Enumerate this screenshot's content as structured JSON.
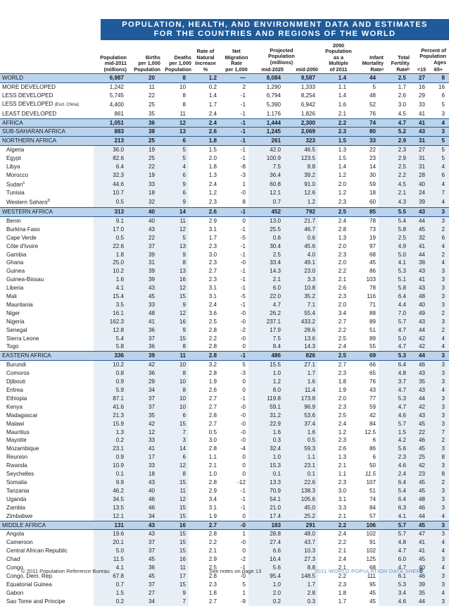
{
  "header": {
    "title_line1": "POPULATION, HEALTH, AND ENVIRONMENT DATA AND ESTIMATES",
    "title_line2": "FOR THE COUNTRIES AND REGIONS OF THE WORLD"
  },
  "columns": {
    "population": "Population\nmid-2011\n(millions)",
    "births": "Births\nper 1,000\nPopulation",
    "deaths": "Deaths\nper 1,000\nPopulation",
    "natural_increase": "Rate of\nNatural\nIncrease\n%",
    "migration": "Net\nMigration\nRate\nper 1,000",
    "projected": "Projected\nPopulation\n(millions)",
    "mid2025": "mid-2025",
    "mid2050": "mid-2050",
    "multiple": "2050\nPopulation\nas a\nMultiple\nof 2011",
    "infant_mortality": "Infant\nMortality\nRateᵃ",
    "fertility": "Total\nFertility\nRateᵇ",
    "ages": "Percent of\nPopulation\nAges",
    "under15": "<15",
    "over65": "65+"
  },
  "rows": [
    {
      "type": "world",
      "name": "WORLD",
      "c": [
        "6,987",
        "20",
        "8",
        "1.2",
        "—",
        "8,084",
        "9,587",
        "1.4",
        "44",
        "2.5",
        "27",
        "8"
      ]
    },
    {
      "type": "sub",
      "name": "MORE DEVELOPED",
      "c": [
        "1,242",
        "11",
        "10",
        "0.2",
        "2",
        "1,290",
        "1,333",
        "1.1",
        "5",
        "1.7",
        "16",
        "16"
      ]
    },
    {
      "type": "sub",
      "name": "LESS DEVELOPED",
      "c": [
        "5,745",
        "22",
        "8",
        "1.4",
        "-1",
        "6,794",
        "8,254",
        "1.4",
        "48",
        "2.6",
        "29",
        "6"
      ]
    },
    {
      "type": "sub",
      "name": "LESS DEVELOPED",
      "note": "(Excl. China)",
      "c": [
        "4,400",
        "25",
        "8",
        "1.7",
        "-1",
        "5,390",
        "6,942",
        "1.6",
        "52",
        "3.0",
        "33",
        "5"
      ]
    },
    {
      "type": "sub",
      "name": "LEAST DEVELOPED",
      "c": [
        "861",
        "35",
        "11",
        "2.4",
        "-1",
        "1,176",
        "1,826",
        "2.1",
        "76",
        "4.5",
        "41",
        "3"
      ]
    },
    {
      "type": "reg",
      "name": "AFRICA",
      "c": [
        "1,051",
        "36",
        "12",
        "2.4",
        "-1",
        "1,444",
        "2,300",
        "2.2",
        "74",
        "4.7",
        "41",
        "4"
      ]
    },
    {
      "type": "reg",
      "name": "SUB-SAHARAN AFRICA",
      "c": [
        "883",
        "38",
        "13",
        "2.6",
        "-1",
        "1,245",
        "2,069",
        "2.3",
        "80",
        "5.2",
        "43",
        "3"
      ]
    },
    {
      "type": "reg",
      "name": "NORTHERN AFRICA",
      "c": [
        "213",
        "25",
        "6",
        "1.8",
        "-1",
        "261",
        "323",
        "1.5",
        "33",
        "2.9",
        "31",
        "5"
      ]
    },
    {
      "type": "cty",
      "name": "Algeria",
      "c": [
        "36.0",
        "19",
        "5",
        "1.5",
        "-1",
        "42.0",
        "46.5",
        "1.3",
        "22",
        "2.3",
        "27",
        "5"
      ]
    },
    {
      "type": "cty",
      "name": "Egypt",
      "c": [
        "82.6",
        "25",
        "5",
        "2.0",
        "-1",
        "100.9",
        "123.5",
        "1.5",
        "23",
        "2.9",
        "31",
        "5"
      ]
    },
    {
      "type": "cty",
      "name": "Libya",
      "c": [
        "6.4",
        "22",
        "4",
        "1.8",
        "-8",
        "7.5",
        "8.8",
        "1.4",
        "14",
        "2.5",
        "31",
        "4"
      ]
    },
    {
      "type": "cty",
      "name": "Morocco",
      "c": [
        "32.3",
        "19",
        "6",
        "1.3",
        "-3",
        "36.4",
        "39.2",
        "1.2",
        "30",
        "2.2",
        "28",
        "6"
      ]
    },
    {
      "type": "cty",
      "name": "Sudan",
      "sup": "c",
      "c": [
        "44.6",
        "33",
        "9",
        "2.4",
        "1",
        "60.8",
        "91.0",
        "2.0",
        "59",
        "4.5",
        "40",
        "4"
      ]
    },
    {
      "type": "cty",
      "name": "Tunisia",
      "c": [
        "10.7",
        "18",
        "6",
        "1.2",
        "-0",
        "12.1",
        "12.6",
        "1.2",
        "18",
        "2.1",
        "24",
        "7"
      ]
    },
    {
      "type": "cty",
      "name": "Western Sahara",
      "sup": "d",
      "c": [
        "0.5",
        "32",
        "9",
        "2.3",
        "8",
        "0.7",
        "1.2",
        "2.3",
        "60",
        "4.3",
        "39",
        "4"
      ]
    },
    {
      "type": "reg",
      "name": "WESTERN AFRICA",
      "c": [
        "313",
        "40",
        "14",
        "2.6",
        "-1",
        "452",
        "792",
        "2.5",
        "85",
        "5.5",
        "43",
        "3"
      ]
    },
    {
      "type": "cty",
      "name": "Benin",
      "c": [
        "9.1",
        "40",
        "11",
        "2.9",
        "0",
        "13.0",
        "21.7",
        "2.4",
        "78",
        "5.4",
        "44",
        "3"
      ]
    },
    {
      "type": "cty",
      "name": "Burkina Faso",
      "c": [
        "17.0",
        "43",
        "12",
        "3.1",
        "-1",
        "25.5",
        "46.7",
        "2.8",
        "73",
        "5.8",
        "45",
        "2"
      ]
    },
    {
      "type": "cty",
      "name": "Cape Verde",
      "c": [
        "0.5",
        "22",
        "5",
        "1.7",
        "-5",
        "0.6",
        "0.6",
        "1.3",
        "19",
        "2.5",
        "32",
        "6"
      ]
    },
    {
      "type": "cty",
      "name": "Côte d'Ivoire",
      "c": [
        "22.6",
        "37",
        "13",
        "2.3",
        "-1",
        "30.4",
        "45.6",
        "2.0",
        "97",
        "4.9",
        "41",
        "4"
      ]
    },
    {
      "type": "cty",
      "name": "Gambia",
      "c": [
        "1.8",
        "39",
        "9",
        "3.0",
        "-1",
        "2.5",
        "4.0",
        "2.3",
        "68",
        "5.0",
        "44",
        "2"
      ]
    },
    {
      "type": "cty",
      "name": "Ghana",
      "c": [
        "25.0",
        "31",
        "8",
        "2.3",
        "-0",
        "33.4",
        "49.1",
        "2.0",
        "45",
        "4.1",
        "38",
        "4"
      ]
    },
    {
      "type": "cty",
      "name": "Guinea",
      "c": [
        "10.2",
        "39",
        "13",
        "2.7",
        "-1",
        "14.3",
        "23.0",
        "2.2",
        "86",
        "5.3",
        "43",
        "3"
      ]
    },
    {
      "type": "cty",
      "name": "Guinea-Bissau",
      "c": [
        "1.6",
        "39",
        "16",
        "2.3",
        "-1",
        "2.1",
        "3.3",
        "2.1",
        "103",
        "5.1",
        "41",
        "3"
      ]
    },
    {
      "type": "cty",
      "name": "Liberia",
      "c": [
        "4.1",
        "43",
        "12",
        "3.1",
        "-1",
        "6.0",
        "10.8",
        "2.6",
        "78",
        "5.8",
        "43",
        "3"
      ]
    },
    {
      "type": "cty",
      "name": "Mali",
      "c": [
        "15.4",
        "45",
        "15",
        "3.1",
        "-5",
        "22.0",
        "35.2",
        "2.3",
        "116",
        "6.4",
        "48",
        "3"
      ]
    },
    {
      "type": "cty",
      "name": "Mauritania",
      "c": [
        "3.5",
        "33",
        "9",
        "2.4",
        "-1",
        "4.7",
        "7.1",
        "2.0",
        "71",
        "4.4",
        "40",
        "3"
      ]
    },
    {
      "type": "cty",
      "name": "Niger",
      "c": [
        "16.1",
        "48",
        "12",
        "3.6",
        "-0",
        "26.2",
        "55.4",
        "3.4",
        "88",
        "7.0",
        "49",
        "2"
      ]
    },
    {
      "type": "cty",
      "name": "Nigeria",
      "c": [
        "162.3",
        "41",
        "16",
        "2.5",
        "-0",
        "237.1",
        "433.2",
        "2.7",
        "89",
        "5.7",
        "43",
        "3"
      ]
    },
    {
      "type": "cty",
      "name": "Senegal",
      "c": [
        "12.8",
        "36",
        "9",
        "2.8",
        "-2",
        "17.9",
        "28.6",
        "2.2",
        "51",
        "4.7",
        "44",
        "2"
      ]
    },
    {
      "type": "cty",
      "name": "Sierra Leone",
      "c": [
        "5.4",
        "37",
        "15",
        "2.2",
        "-0",
        "7.5",
        "13.6",
        "2.5",
        "89",
        "5.0",
        "42",
        "4"
      ]
    },
    {
      "type": "cty",
      "name": "Togo",
      "c": [
        "5.8",
        "36",
        "8",
        "2.8",
        "0",
        "8.4",
        "14.3",
        "2.4",
        "55",
        "4.7",
        "42",
        "4"
      ]
    },
    {
      "type": "reg",
      "name": "EASTERN AFRICA",
      "c": [
        "336",
        "39",
        "11",
        "2.8",
        "-1",
        "486",
        "826",
        "2.5",
        "69",
        "5.3",
        "44",
        "3"
      ]
    },
    {
      "type": "cty",
      "name": "Burundi",
      "c": [
        "10.2",
        "42",
        "10",
        "3.2",
        "5",
        "15.5",
        "27.1",
        "2.7",
        "66",
        "6.4",
        "46",
        "3"
      ]
    },
    {
      "type": "cty",
      "name": "Comoros",
      "c": [
        "0.8",
        "36",
        "8",
        "2.8",
        "-3",
        "1.0",
        "1.7",
        "2.3",
        "65",
        "4.8",
        "43",
        "3"
      ]
    },
    {
      "type": "cty",
      "name": "Djibouti",
      "c": [
        "0.9",
        "29",
        "10",
        "1.9",
        "0",
        "1.2",
        "1.6",
        "1.8",
        "76",
        "3.7",
        "35",
        "3"
      ]
    },
    {
      "type": "cty",
      "name": "Eritrea",
      "c": [
        "5.9",
        "34",
        "8",
        "2.6",
        "0",
        "8.0",
        "11.4",
        "1.9",
        "43",
        "4.7",
        "43",
        "4"
      ]
    },
    {
      "type": "cty",
      "name": "Ethiopia",
      "c": [
        "87.1",
        "37",
        "10",
        "2.7",
        "-1",
        "119.8",
        "173.8",
        "2.0",
        "77",
        "5.3",
        "44",
        "3"
      ]
    },
    {
      "type": "cty",
      "name": "Kenya",
      "c": [
        "41.6",
        "37",
        "10",
        "2.7",
        "-0",
        "59.1",
        "96.9",
        "2.3",
        "59",
        "4.7",
        "42",
        "3"
      ]
    },
    {
      "type": "cty",
      "name": "Madagascar",
      "c": [
        "21.3",
        "35",
        "6",
        "2.8",
        "-0",
        "31.2",
        "53.6",
        "2.5",
        "42",
        "4.6",
        "43",
        "3"
      ]
    },
    {
      "type": "cty",
      "name": "Malawi",
      "c": [
        "15.9",
        "42",
        "15",
        "2.7",
        "-0",
        "22.9",
        "37.4",
        "2.4",
        "84",
        "5.7",
        "45",
        "3"
      ]
    },
    {
      "type": "cty",
      "name": "Mauritius",
      "c": [
        "1.3",
        "12",
        "7",
        "0.5",
        "-0",
        "1.6",
        "1.6",
        "1.2",
        "12.5",
        "1.5",
        "22",
        "7"
      ]
    },
    {
      "type": "cty",
      "name": "Mayotte",
      "c": [
        "0.2",
        "33",
        "3",
        "3.0",
        "-0",
        "0.3",
        "0.5",
        "2.3",
        "6",
        "4.2",
        "46",
        "2"
      ]
    },
    {
      "type": "cty",
      "name": "Mozambique",
      "c": [
        "23.1",
        "41",
        "14",
        "2.8",
        "-4",
        "32.4",
        "59.3",
        "2.6",
        "86",
        "5.6",
        "45",
        "3"
      ]
    },
    {
      "type": "cty",
      "name": "Reunion",
      "c": [
        "0.9",
        "17",
        "6",
        "1.1",
        "0",
        "1.0",
        "1.1",
        "1.3",
        "6",
        "2.3",
        "25",
        "8"
      ]
    },
    {
      "type": "cty",
      "name": "Rwanda",
      "c": [
        "10.9",
        "33",
        "12",
        "2.1",
        "0",
        "15.3",
        "23.1",
        "2.1",
        "50",
        "4.6",
        "42",
        "3"
      ]
    },
    {
      "type": "cty",
      "name": "Seychelles",
      "c": [
        "0.1",
        "18",
        "8",
        "1.0",
        "0",
        "0.1",
        "0.1",
        "1.1",
        "11.5",
        "2.4",
        "23",
        "8"
      ]
    },
    {
      "type": "cty",
      "name": "Somalia",
      "c": [
        "9.9",
        "43",
        "15",
        "2.8",
        "-12",
        "13.3",
        "22.6",
        "2.3",
        "107",
        "6.4",
        "45",
        "2"
      ]
    },
    {
      "type": "cty",
      "name": "Tanzania",
      "c": [
        "46.2",
        "40",
        "11",
        "2.9",
        "-1",
        "70.9",
        "138.3",
        "3.0",
        "51",
        "5.4",
        "45",
        "3"
      ]
    },
    {
      "type": "cty",
      "name": "Uganda",
      "c": [
        "34.5",
        "46",
        "12",
        "3.4",
        "-1",
        "54.1",
        "105.6",
        "3.1",
        "74",
        "6.4",
        "48",
        "3"
      ]
    },
    {
      "type": "cty",
      "name": "Zambia",
      "c": [
        "13.5",
        "46",
        "15",
        "3.1",
        "-1",
        "21.0",
        "45.0",
        "3.3",
        "84",
        "6.3",
        "46",
        "3"
      ]
    },
    {
      "type": "cty",
      "name": "Zimbabwe",
      "c": [
        "12.1",
        "34",
        "15",
        "1.9",
        "0",
        "17.4",
        "25.2",
        "2.1",
        "57",
        "4.1",
        "44",
        "4"
      ]
    },
    {
      "type": "reg",
      "name": "MIDDLE AFRICA",
      "c": [
        "131",
        "43",
        "16",
        "2.7",
        "-0",
        "183",
        "291",
        "2.2",
        "106",
        "5.7",
        "45",
        "3"
      ]
    },
    {
      "type": "cty",
      "name": "Angola",
      "c": [
        "19.6",
        "43",
        "15",
        "2.8",
        "1",
        "28.8",
        "48.0",
        "2.4",
        "102",
        "5.7",
        "47",
        "3"
      ]
    },
    {
      "type": "cty",
      "name": "Cameroon",
      "c": [
        "20.1",
        "37",
        "15",
        "2.2",
        "-0",
        "27.4",
        "43.7",
        "2.2",
        "91",
        "4.8",
        "41",
        "4"
      ]
    },
    {
      "type": "cty",
      "name": "Central African Republic",
      "c": [
        "5.0",
        "37",
        "15",
        "2.1",
        "0",
        "6.6",
        "10.3",
        "2.1",
        "102",
        "4.7",
        "41",
        "4"
      ]
    },
    {
      "type": "cty",
      "name": "Chad",
      "c": [
        "11.5",
        "45",
        "16",
        "2.9",
        "-2",
        "16.4",
        "27.3",
        "2.4",
        "125",
        "6.0",
        "45",
        "3"
      ]
    },
    {
      "type": "cty",
      "name": "Congo",
      "c": [
        "4.1",
        "36",
        "11",
        "2.5",
        "-1",
        "5.6",
        "8.8",
        "2.1",
        "68",
        "4.7",
        "40",
        "4"
      ]
    },
    {
      "type": "cty",
      "name": "Congo, Dem. Rep.",
      "c": [
        "67.8",
        "45",
        "17",
        "2.8",
        "-0",
        "95.4",
        "148.5",
        "2.2",
        "111",
        "6.1",
        "46",
        "3"
      ]
    },
    {
      "type": "cty",
      "name": "Equatorial Guinea",
      "c": [
        "0.7",
        "37",
        "15",
        "2.3",
        "5",
        "1.0",
        "1.7",
        "2.3",
        "95",
        "5.3",
        "39",
        "3"
      ]
    },
    {
      "type": "cty",
      "name": "Gabon",
      "c": [
        "1.5",
        "27",
        "9",
        "1.8",
        "1",
        "2.0",
        "2.8",
        "1.8",
        "45",
        "3.4",
        "35",
        "4"
      ]
    },
    {
      "type": "cty",
      "name": "Sao Tome and Principe",
      "c": [
        "0.2",
        "34",
        "7",
        "2.7",
        "-9",
        "0.2",
        "0.3",
        "1.7",
        "45",
        "4.6",
        "44",
        "3"
      ]
    }
  ],
  "footer": {
    "copyright": "© 2011 Population Reference Bureau",
    "notes": "See notes on page 13",
    "sheet": "2011 WORLD POPULATION DATA SHEET",
    "page": "6"
  },
  "colors": {
    "header_bg": "#1f5a9a",
    "region_bg": "#bcd3ea",
    "footer_sheet": "#6b8fbf"
  }
}
